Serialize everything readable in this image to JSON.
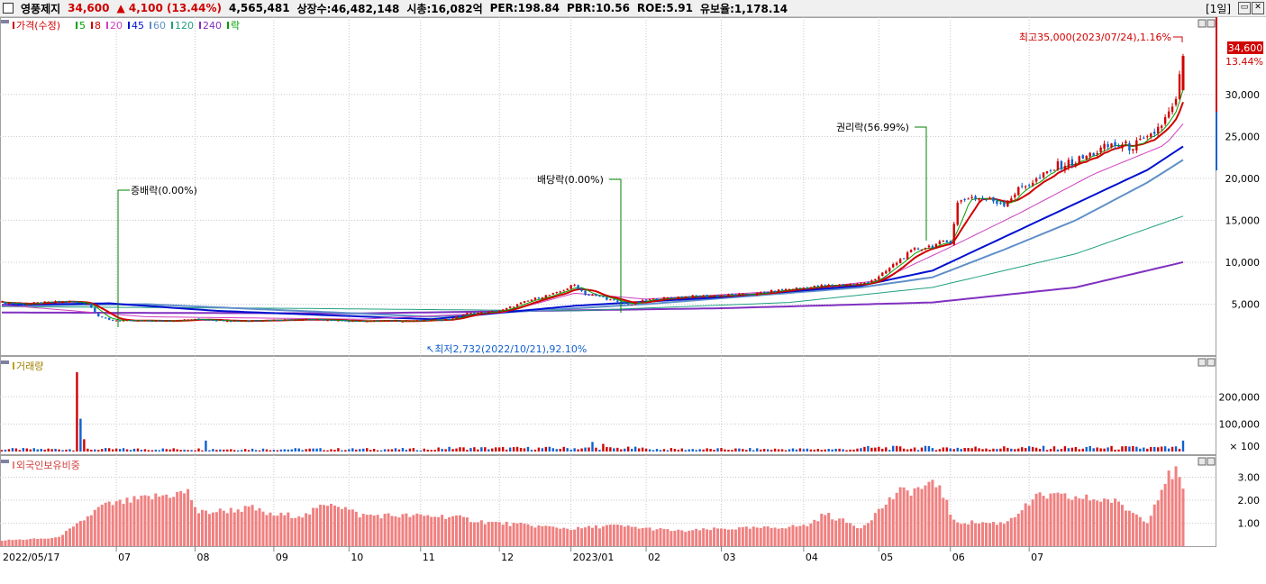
{
  "header": {
    "name": "영풍제지",
    "price": "34,600",
    "change": "▲ 4,100 (13.44%)",
    "volume": "4,565,481",
    "shares": "상장수:46,482,148",
    "mcap": "시총:16,082억",
    "per": "PER:198.84",
    "pbr": "PBR:10.56",
    "roe": "ROE:5.91",
    "reserve": "유보율:1,178.14",
    "period": "[1일]"
  },
  "chart_data": [
    {
      "type": "candlestick",
      "panel": "price",
      "legend": [
        "가격(수정)",
        "5",
        "8",
        "20",
        "45",
        "60",
        "120",
        "240",
        "락"
      ],
      "series_colors": {
        "5": "#00a000",
        "8": "#d00000",
        "20": "#d040c0",
        "45": "#0010d0",
        "60": "#6090c8",
        "120": "#20a080",
        "240": "#8030c0"
      },
      "y_ticks": [
        "30,000",
        "25,000",
        "20,000",
        "15,000",
        "10,000",
        "5,000"
      ],
      "y_tick_values": [
        30000,
        25000,
        20000,
        15000,
        10000,
        5000
      ],
      "ylim": [
        0,
        37000
      ],
      "last_price_label": "34,600",
      "last_change_label": "13.44%",
      "annotations": {
        "high": "최고35,000(2023/07/24),1.16%",
        "low": "최저2,732(2022/10/21),92.10%",
        "rights": "권리락(56.99%)",
        "bonus": "증배락(0.00%)",
        "dividend": "배당락(0.00%)"
      },
      "close_points": [
        [
          0,
          5200
        ],
        [
          6,
          5000
        ],
        [
          12,
          5200
        ],
        [
          18,
          5300
        ],
        [
          24,
          5100
        ],
        [
          27,
          3600
        ],
        [
          30,
          3100
        ],
        [
          36,
          3000
        ],
        [
          45,
          3000
        ],
        [
          55,
          3200
        ],
        [
          65,
          3000
        ],
        [
          75,
          3100
        ],
        [
          85,
          3200
        ],
        [
          95,
          3000
        ],
        [
          105,
          3000
        ],
        [
          115,
          3000
        ],
        [
          125,
          3200
        ],
        [
          130,
          3900
        ],
        [
          135,
          4000
        ],
        [
          140,
          4300
        ],
        [
          145,
          5100
        ],
        [
          150,
          5800
        ],
        [
          155,
          6300
        ],
        [
          160,
          7300
        ],
        [
          163,
          6200
        ],
        [
          168,
          5800
        ],
        [
          172,
          5200
        ],
        [
          176,
          5000
        ],
        [
          180,
          5500
        ],
        [
          185,
          5700
        ],
        [
          190,
          5900
        ],
        [
          200,
          6000
        ],
        [
          210,
          6200
        ],
        [
          220,
          6800
        ],
        [
          230,
          7200
        ],
        [
          240,
          7400
        ],
        [
          245,
          8200
        ],
        [
          250,
          10000
        ],
        [
          255,
          11500
        ],
        [
          260,
          12000
        ],
        [
          265,
          12500
        ],
        [
          267,
          17000
        ],
        [
          270,
          17800
        ],
        [
          275,
          17500
        ],
        [
          280,
          17000
        ],
        [
          285,
          19000
        ],
        [
          290,
          20000
        ],
        [
          295,
          21500
        ],
        [
          300,
          22000
        ],
        [
          305,
          23000
        ],
        [
          310,
          24000
        ],
        [
          315,
          23800
        ],
        [
          320,
          24500
        ],
        [
          325,
          27000
        ],
        [
          328,
          29000
        ],
        [
          330,
          34600
        ]
      ],
      "ma_points": {
        "20": [
          [
            0,
            4900
          ],
          [
            40,
            3500
          ],
          [
            100,
            3200
          ],
          [
            140,
            4000
          ],
          [
            160,
            6300
          ],
          [
            180,
            5600
          ],
          [
            220,
            6600
          ],
          [
            245,
            7800
          ],
          [
            265,
            11800
          ],
          [
            285,
            16000
          ],
          [
            305,
            20500
          ],
          [
            325,
            24000
          ],
          [
            330,
            26500
          ]
        ],
        "45": [
          [
            0,
            4900
          ],
          [
            30,
            5100
          ],
          [
            60,
            4200
          ],
          [
            120,
            3200
          ],
          [
            160,
            4800
          ],
          [
            200,
            5800
          ],
          [
            240,
            7200
          ],
          [
            260,
            9000
          ],
          [
            280,
            13000
          ],
          [
            300,
            17000
          ],
          [
            320,
            21000
          ],
          [
            330,
            23800
          ]
        ],
        "60": [
          [
            0,
            4800
          ],
          [
            40,
            5000
          ],
          [
            120,
            3500
          ],
          [
            180,
            5000
          ],
          [
            240,
            7000
          ],
          [
            260,
            8200
          ],
          [
            280,
            11500
          ],
          [
            300,
            15000
          ],
          [
            320,
            19500
          ],
          [
            330,
            22200
          ]
        ],
        "120": [
          [
            0,
            4700
          ],
          [
            80,
            4500
          ],
          [
            160,
            4200
          ],
          [
            220,
            5200
          ],
          [
            260,
            7000
          ],
          [
            300,
            11000
          ],
          [
            330,
            15500
          ]
        ],
        "240": [
          [
            0,
            4000
          ],
          [
            100,
            3900
          ],
          [
            200,
            4500
          ],
          [
            260,
            5200
          ],
          [
            300,
            7000
          ],
          [
            330,
            10000
          ]
        ]
      }
    },
    {
      "type": "bar",
      "panel": "volume",
      "legend": [
        "거래량"
      ],
      "y_ticks": [
        "200,000",
        "100,000",
        "× 100"
      ],
      "y_tick_values": [
        200000,
        100000
      ],
      "ylim": [
        0,
        300000
      ],
      "spikes": [
        [
          21,
          290000
        ],
        [
          22,
          120000
        ],
        [
          23,
          45000
        ],
        [
          57,
          40000
        ],
        [
          165,
          35000
        ],
        [
          168,
          28000
        ],
        [
          330,
          40000
        ]
      ]
    },
    {
      "type": "bar",
      "panel": "foreign_ownership",
      "legend": [
        "외국인보유비중"
      ],
      "y_ticks": [
        "3.00",
        "2.00",
        "1.00"
      ],
      "y_tick_values": [
        3.0,
        2.0,
        1.0
      ],
      "ylim": [
        0,
        3.6
      ],
      "ratio_points": [
        [
          0,
          0.25
        ],
        [
          15,
          0.35
        ],
        [
          20,
          0.8
        ],
        [
          28,
          1.75
        ],
        [
          45,
          2.2
        ],
        [
          52,
          2.35
        ],
        [
          55,
          1.45
        ],
        [
          70,
          1.65
        ],
        [
          75,
          1.35
        ],
        [
          85,
          1.35
        ],
        [
          92,
          1.95
        ],
        [
          100,
          1.35
        ],
        [
          125,
          1.3
        ],
        [
          135,
          1.05
        ],
        [
          160,
          0.75
        ],
        [
          170,
          0.9
        ],
        [
          190,
          0.65
        ],
        [
          200,
          0.75
        ],
        [
          215,
          0.8
        ],
        [
          225,
          0.9
        ],
        [
          230,
          1.4
        ],
        [
          240,
          0.8
        ],
        [
          250,
          2.3
        ],
        [
          262,
          2.7
        ],
        [
          266,
          1.05
        ],
        [
          280,
          1.0
        ],
        [
          290,
          2.2
        ],
        [
          300,
          2.1
        ],
        [
          310,
          2.0
        ],
        [
          320,
          1.1
        ],
        [
          325,
          2.9
        ],
        [
          328,
          3.25
        ],
        [
          330,
          2.4
        ]
      ]
    }
  ],
  "x_axis": {
    "labels": [
      "2022/05/17",
      "07",
      "08",
      "09",
      "10",
      "11",
      "12",
      "2023/01",
      "02",
      "03",
      "04",
      "05",
      "06",
      "07"
    ],
    "label_bar_index": [
      0,
      33,
      55,
      77,
      98,
      118,
      140,
      160,
      181,
      202,
      225,
      246,
      266,
      288
    ]
  },
  "colors": {
    "up": "#d00000",
    "down": "#1060d0",
    "foreign": "#f08080"
  }
}
